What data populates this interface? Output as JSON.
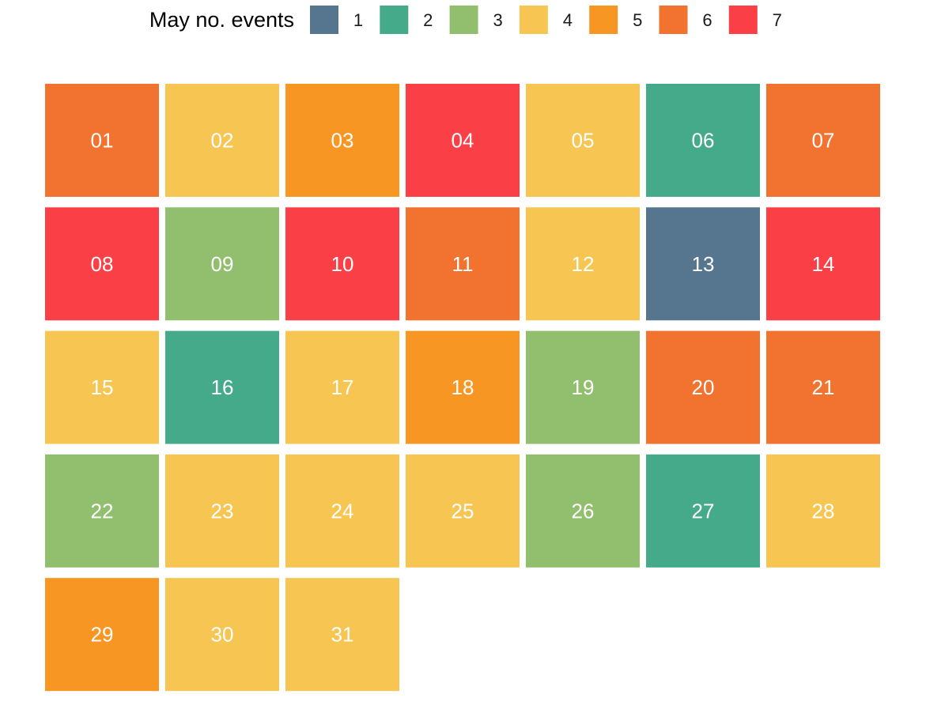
{
  "chart_data": {
    "type": "heatmap",
    "legend": {
      "title": "May no. events",
      "placement": "top-center",
      "levels": [
        {
          "value": 1,
          "label": "1",
          "color": "#56758F"
        },
        {
          "value": 2,
          "label": "2",
          "color": "#44AA8A"
        },
        {
          "value": 3,
          "label": "3",
          "color": "#92BF6E"
        },
        {
          "value": 4,
          "label": "4",
          "color": "#F7C652"
        },
        {
          "value": 5,
          "label": "5",
          "color": "#F89623"
        },
        {
          "value": 6,
          "label": "6",
          "color": "#F2732F"
        },
        {
          "value": 7,
          "label": "7",
          "color": "#FA4046"
        }
      ]
    },
    "grid_columns": 7,
    "days": [
      {
        "day": "01",
        "events": 6
      },
      {
        "day": "02",
        "events": 4
      },
      {
        "day": "03",
        "events": 5
      },
      {
        "day": "04",
        "events": 7
      },
      {
        "day": "05",
        "events": 4
      },
      {
        "day": "06",
        "events": 2
      },
      {
        "day": "07",
        "events": 6
      },
      {
        "day": "08",
        "events": 7
      },
      {
        "day": "09",
        "events": 3
      },
      {
        "day": "10",
        "events": 7
      },
      {
        "day": "11",
        "events": 6
      },
      {
        "day": "12",
        "events": 4
      },
      {
        "day": "13",
        "events": 1
      },
      {
        "day": "14",
        "events": 7
      },
      {
        "day": "15",
        "events": 4
      },
      {
        "day": "16",
        "events": 2
      },
      {
        "day": "17",
        "events": 4
      },
      {
        "day": "18",
        "events": 5
      },
      {
        "day": "19",
        "events": 3
      },
      {
        "day": "20",
        "events": 6
      },
      {
        "day": "21",
        "events": 6
      },
      {
        "day": "22",
        "events": 3
      },
      {
        "day": "23",
        "events": 4
      },
      {
        "day": "24",
        "events": 4
      },
      {
        "day": "25",
        "events": 4
      },
      {
        "day": "26",
        "events": 3
      },
      {
        "day": "27",
        "events": 2
      },
      {
        "day": "28",
        "events": 4
      },
      {
        "day": "29",
        "events": 5
      },
      {
        "day": "30",
        "events": 4
      },
      {
        "day": "31",
        "events": 4
      }
    ]
  }
}
